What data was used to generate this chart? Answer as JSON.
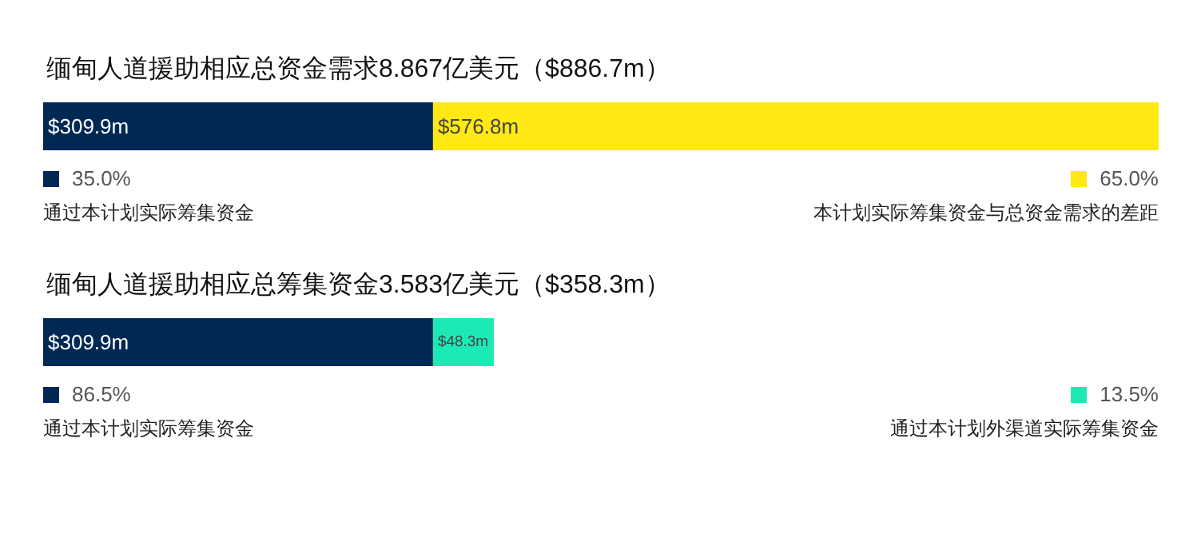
{
  "chart_data": [
    {
      "type": "bar",
      "orientation": "horizontal",
      "stacked": true,
      "title": "缅甸人道援助相应总资金需求8.867亿美元（$886.7m）",
      "categories": [
        null
      ],
      "legend": "bottom",
      "annotations": [
        "35.0%",
        "65.0%"
      ],
      "series": [
        {
          "name": "通过本计划实际筹集资金",
          "color": "#002855",
          "values": [
            309.9
          ],
          "value_labels": [
            "$309.9m"
          ]
        },
        {
          "name": "本计划实际筹集资金与总资金需求的差距",
          "color": "#ffe814",
          "values": [
            576.8
          ],
          "value_labels": [
            "$576.8m"
          ]
        }
      ]
    },
    {
      "type": "bar",
      "orientation": "horizontal",
      "stacked": true,
      "title": "缅甸人道援助相应总筹集资金3.583亿美元（$358.3m）",
      "categories": [
        null
      ],
      "legend": "bottom",
      "annotations": [
        "86.5%",
        "13.5%"
      ],
      "series": [
        {
          "name": "通过本计划实际筹集资金",
          "color": "#002855",
          "values": [
            309.9
          ],
          "value_labels": [
            "$309.9m"
          ]
        },
        {
          "name": "通过本计划外渠道实际筹集资金",
          "color": "#1de9b6",
          "values": [
            48.3
          ],
          "value_labels": [
            "$48.3m"
          ]
        }
      ]
    }
  ]
}
